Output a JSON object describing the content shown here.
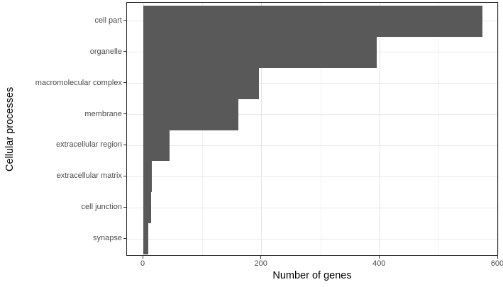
{
  "chart_data": {
    "type": "bar",
    "orientation": "horizontal",
    "title": "",
    "xlabel": "Number of genes",
    "ylabel": "Cellular processes",
    "categories": [
      "cell part",
      "organelle",
      "macromolecular complex",
      "membrane",
      "extracellular region",
      "extracellular matrix",
      "cell junction",
      "synapse"
    ],
    "values": [
      573,
      395,
      196,
      161,
      44,
      14,
      13,
      8
    ],
    "xlim": [
      0,
      600
    ],
    "x_major_ticks": [
      0,
      200,
      400,
      600
    ],
    "x_minor_ticks": [
      100,
      300,
      500
    ],
    "x_tick_labels": [
      "0",
      "200",
      "400",
      "600"
    ],
    "grid": true,
    "legend_position": "none",
    "bar_color": "#595959",
    "panel_border_color": "#2e2e2e",
    "major_grid_color": "#e4e4e4",
    "minor_grid_color": "#f2f2f2",
    "background_color": "#ffffff"
  }
}
